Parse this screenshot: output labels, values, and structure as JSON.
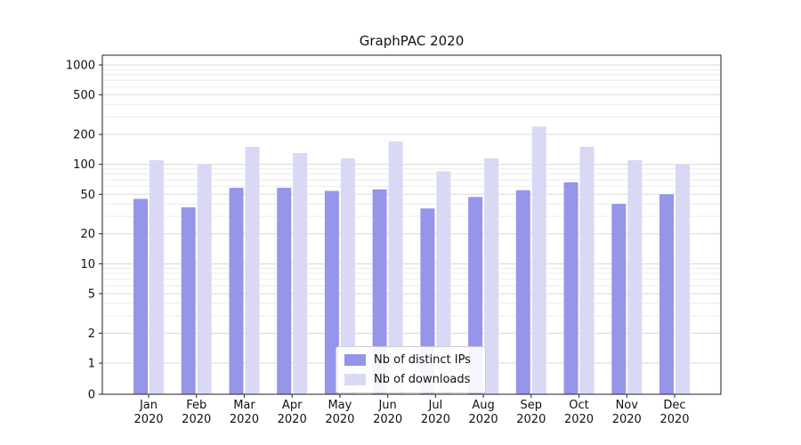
{
  "chart_data": {
    "type": "bar",
    "title": "GraphPAC 2020",
    "categories": [
      "Jan 2020",
      "Feb 2020",
      "Mar 2020",
      "Apr 2020",
      "May 2020",
      "Jun 2020",
      "Jul 2020",
      "Aug 2020",
      "Sep 2020",
      "Oct 2020",
      "Nov 2020",
      "Dec 2020"
    ],
    "series": [
      {
        "name": "Nb of distinct IPs",
        "color": "#9595ea",
        "values": [
          45,
          37,
          58,
          58,
          54,
          56,
          36,
          47,
          55,
          66,
          40,
          50
        ]
      },
      {
        "name": "Nb of downloads",
        "color": "#d9d9f6",
        "values": [
          110,
          100,
          150,
          130,
          115,
          170,
          85,
          115,
          240,
          150,
          110,
          100
        ]
      }
    ],
    "yticks": [
      1000,
      500,
      200,
      100,
      50,
      20,
      10,
      5,
      2,
      1,
      0
    ],
    "ylim": [
      0,
      1000
    ],
    "yscale": "log (with 0 baseline)",
    "xlabel": "",
    "ylabel": "",
    "grid": "horizontal major and minor log gridlines",
    "legend_position": "lower center inside plot"
  },
  "colors": {
    "bar_distinct_ips": "#9595ea",
    "bar_downloads": "#d9d9f6",
    "grid_major": "#d9d9d9",
    "grid_minor": "#ebebeb",
    "axis": "#222222",
    "text": "#111111",
    "background": "#ffffff",
    "legend_border": "#cccccc"
  }
}
